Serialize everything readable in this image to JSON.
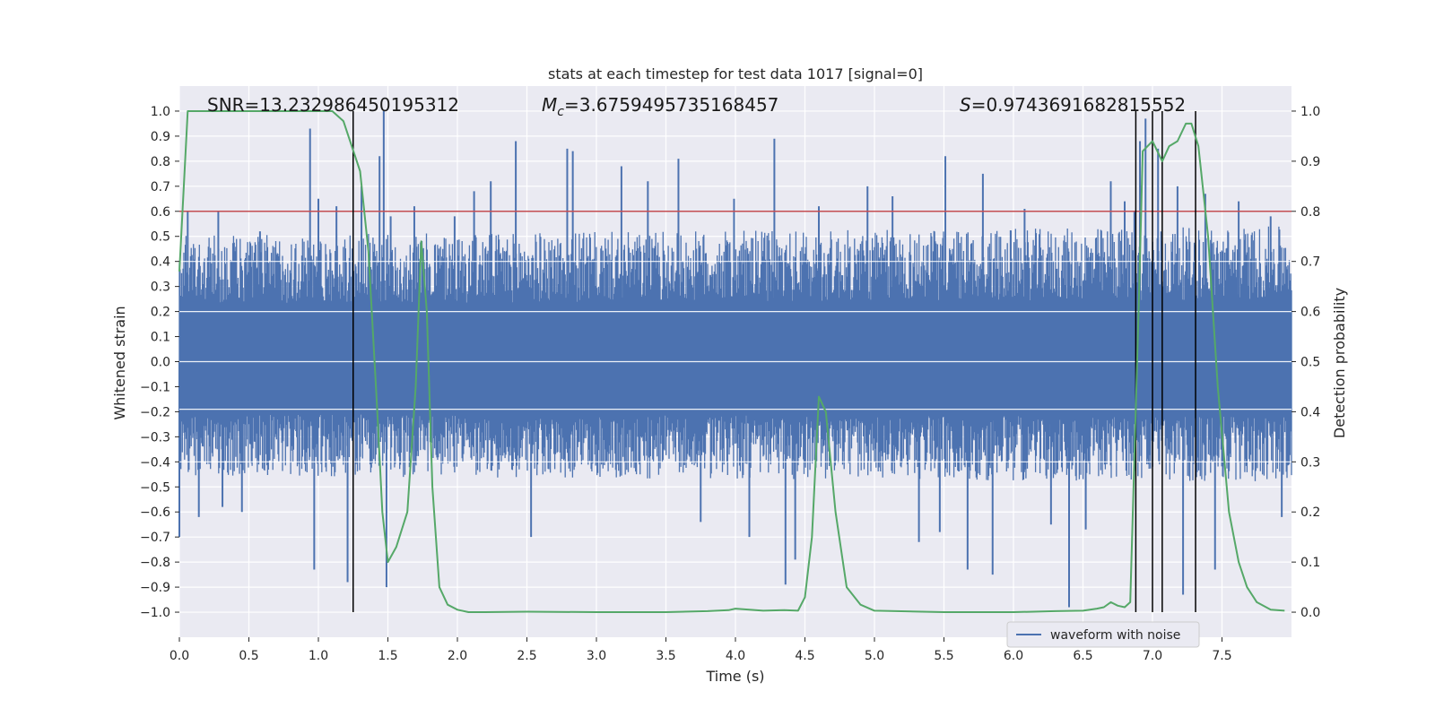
{
  "chart_data": {
    "type": "line",
    "title": "stats at each timestep for test data 1017 [signal=0]",
    "xlabel": "Time (s)",
    "ylabel_left": "Whitened strain",
    "ylabel_right": "Detection probability",
    "xlim": [
      0.0,
      8.0
    ],
    "ylim_left": [
      -1.1,
      1.1
    ],
    "ylim_right": [
      -0.05,
      1.05
    ],
    "x_ticks": [
      0.0,
      0.5,
      1.0,
      1.5,
      2.0,
      2.5,
      3.0,
      3.5,
      4.0,
      4.5,
      5.0,
      5.5,
      6.0,
      6.5,
      7.0,
      7.5
    ],
    "x_tick_labels": [
      "0.0",
      "0.5",
      "1.0",
      "1.5",
      "2.0",
      "2.5",
      "3.0",
      "3.5",
      "4.0",
      "4.5",
      "5.0",
      "5.5",
      "6.0",
      "6.5",
      "7.0",
      "7.5"
    ],
    "y_left_ticks": [
      1.0,
      0.9,
      0.8,
      0.7,
      0.6,
      0.5,
      0.4,
      0.3,
      0.2,
      0.1,
      0.0,
      -0.1,
      -0.2,
      -0.3,
      -0.4,
      -0.5,
      -0.6,
      -0.7,
      -0.8,
      -0.9,
      -1.0
    ],
    "y_left_tick_labels": [
      "1.0",
      "0.9",
      "0.8",
      "0.7",
      "0.6",
      "0.5",
      "0.4",
      "0.3",
      "0.2",
      "0.1",
      "0.0",
      "−0.1",
      "−0.2",
      "−0.3",
      "−0.4",
      "−0.5",
      "−0.6",
      "−0.7",
      "−0.8",
      "−0.9",
      "−1.0"
    ],
    "y_right_ticks": [
      1.0,
      0.9,
      0.8,
      0.7,
      0.6,
      0.5,
      0.4,
      0.3,
      0.2,
      0.1,
      0.0
    ],
    "y_right_tick_labels": [
      "1.0",
      "0.9",
      "0.8",
      "0.7",
      "0.6",
      "0.5",
      "0.4",
      "0.3",
      "0.2",
      "0.1",
      "0.0"
    ],
    "grid": true,
    "annotations": {
      "snr": "SNR=13.232986450195312",
      "mc_symbol": "M",
      "mc_sub": "c",
      "mc_value": "=3.6759495735168457",
      "s_symbol": "S",
      "s_value": "=0.9743691682815552"
    },
    "threshold": {
      "value": 0.8,
      "color": "#c44e52"
    },
    "vertical_lines": [
      1.25,
      6.88,
      7.0,
      7.07,
      7.31
    ],
    "legend": {
      "label": "waveform with noise",
      "position": "lower-right"
    },
    "series": [
      {
        "name": "waveform with noise",
        "axis": "left",
        "color": "#4c72b0",
        "x": [
          0.0,
          8.0
        ],
        "envelope_pos": [
          0.42,
          0.45
        ],
        "envelope_neg": [
          -0.38,
          -0.4
        ],
        "spikes": [
          [
            0.0,
            -0.7
          ],
          [
            0.06,
            0.6
          ],
          [
            0.14,
            -0.62
          ],
          [
            0.28,
            0.6
          ],
          [
            0.31,
            -0.58
          ],
          [
            0.45,
            -0.6
          ],
          [
            0.58,
            0.52
          ],
          [
            0.94,
            0.93
          ],
          [
            0.97,
            -0.83
          ],
          [
            1.0,
            0.65
          ],
          [
            1.13,
            0.62
          ],
          [
            1.21,
            -0.88
          ],
          [
            1.31,
            0.7
          ],
          [
            1.44,
            0.82
          ],
          [
            1.47,
            1.0
          ],
          [
            1.49,
            -0.9
          ],
          [
            1.52,
            0.58
          ],
          [
            1.69,
            0.62
          ],
          [
            1.98,
            0.58
          ],
          [
            2.12,
            0.68
          ],
          [
            2.24,
            0.72
          ],
          [
            2.42,
            0.88
          ],
          [
            2.53,
            -0.7
          ],
          [
            2.79,
            0.85
          ],
          [
            2.83,
            0.84
          ],
          [
            3.18,
            0.78
          ],
          [
            3.37,
            0.72
          ],
          [
            3.59,
            0.81
          ],
          [
            3.75,
            -0.64
          ],
          [
            3.99,
            0.65
          ],
          [
            4.1,
            -0.7
          ],
          [
            4.28,
            0.89
          ],
          [
            4.36,
            -0.89
          ],
          [
            4.43,
            -0.79
          ],
          [
            4.6,
            0.62
          ],
          [
            4.95,
            0.7
          ],
          [
            5.13,
            0.66
          ],
          [
            5.32,
            -0.72
          ],
          [
            5.47,
            -0.68
          ],
          [
            5.51,
            0.82
          ],
          [
            5.67,
            -0.83
          ],
          [
            5.78,
            0.75
          ],
          [
            5.85,
            -0.85
          ],
          [
            6.08,
            0.61
          ],
          [
            6.27,
            -0.65
          ],
          [
            6.4,
            -0.98
          ],
          [
            6.52,
            -0.67
          ],
          [
            6.7,
            0.72
          ],
          [
            6.8,
            0.64
          ],
          [
            6.87,
            0.6
          ],
          [
            6.91,
            0.88
          ],
          [
            6.95,
            0.97
          ],
          [
            7.04,
            0.85
          ],
          [
            7.18,
            0.7
          ],
          [
            7.22,
            -0.93
          ],
          [
            7.38,
            0.67
          ],
          [
            7.45,
            -0.83
          ],
          [
            7.62,
            0.64
          ],
          [
            7.85,
            0.58
          ],
          [
            7.93,
            -0.62
          ]
        ]
      },
      {
        "name": "",
        "axis": "right",
        "color": "#55a868",
        "x": [
          0.0,
          0.06,
          0.12,
          0.2,
          0.4,
          0.6,
          0.8,
          1.0,
          1.1,
          1.18,
          1.24,
          1.3,
          1.36,
          1.42,
          1.46,
          1.5,
          1.56,
          1.64,
          1.7,
          1.74,
          1.78,
          1.82,
          1.87,
          1.93,
          2.0,
          2.08,
          2.2,
          2.5,
          3.0,
          3.5,
          3.8,
          3.95,
          4.0,
          4.1,
          4.2,
          4.35,
          4.45,
          4.5,
          4.55,
          4.6,
          4.65,
          4.72,
          4.8,
          4.9,
          5.0,
          5.5,
          6.0,
          6.3,
          6.5,
          6.6,
          6.65,
          6.7,
          6.75,
          6.8,
          6.84,
          6.9,
          6.93,
          7.0,
          7.07,
          7.12,
          7.18,
          7.24,
          7.28,
          7.33,
          7.4,
          7.47,
          7.55,
          7.62,
          7.68,
          7.75,
          7.85,
          7.95
        ],
        "y": [
          0.68,
          1.0,
          1.0,
          1.0,
          1.0,
          1.0,
          1.0,
          1.0,
          1.0,
          0.98,
          0.93,
          0.88,
          0.72,
          0.42,
          0.2,
          0.1,
          0.13,
          0.2,
          0.45,
          0.74,
          0.6,
          0.25,
          0.05,
          0.015,
          0.005,
          0.0,
          0.0,
          0.001,
          0.0,
          0.0,
          0.002,
          0.004,
          0.007,
          0.005,
          0.003,
          0.004,
          0.003,
          0.03,
          0.15,
          0.43,
          0.4,
          0.2,
          0.05,
          0.015,
          0.003,
          0.0,
          0.0,
          0.002,
          0.003,
          0.007,
          0.01,
          0.02,
          0.013,
          0.01,
          0.02,
          0.6,
          0.92,
          0.94,
          0.9,
          0.93,
          0.94,
          0.975,
          0.975,
          0.93,
          0.75,
          0.45,
          0.2,
          0.1,
          0.05,
          0.02,
          0.005,
          0.003
        ]
      }
    ]
  }
}
